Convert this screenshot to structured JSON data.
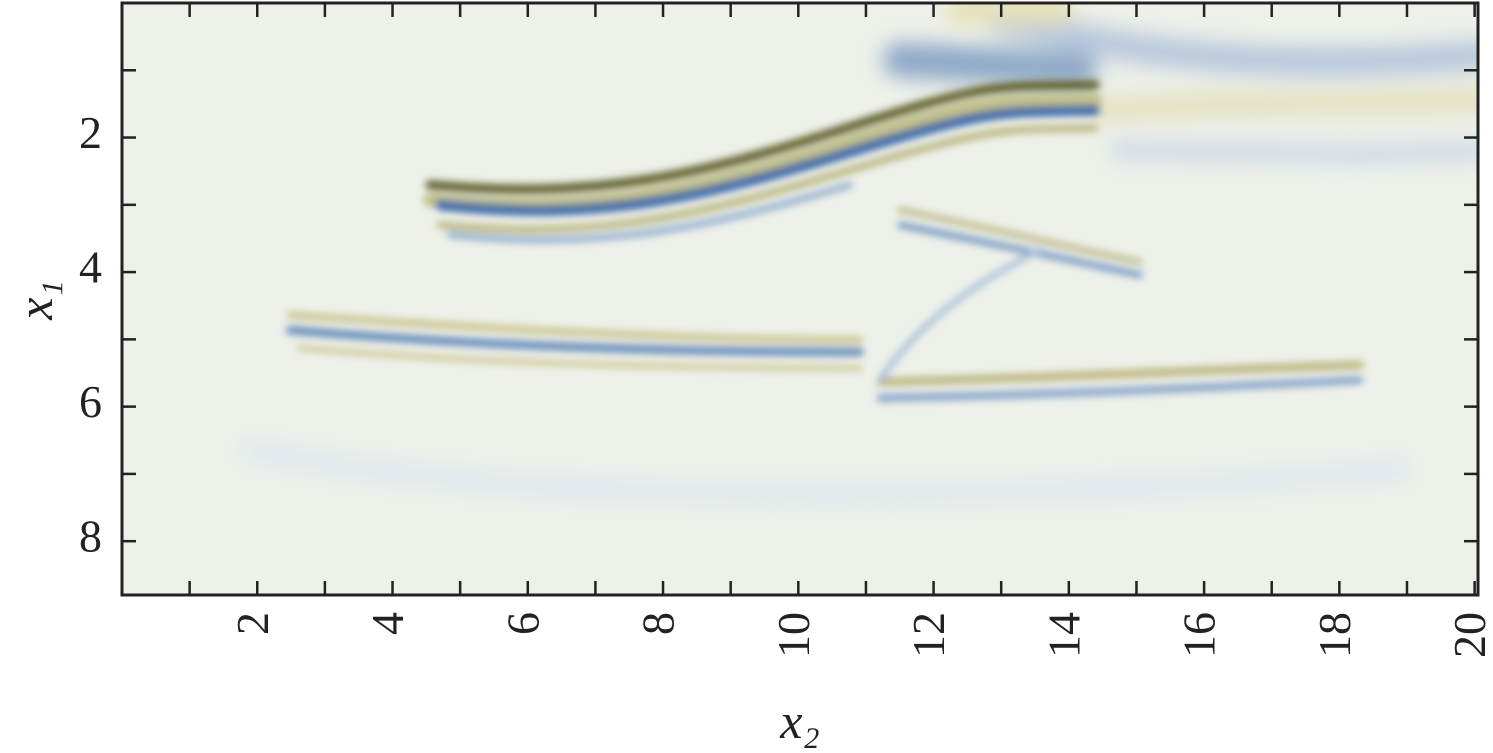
{
  "chart_data": {
    "type": "image",
    "xlabel": "x₂",
    "ylabel": "x₁",
    "xlim": [
      0,
      20.05
    ],
    "ylim": [
      0,
      8.8
    ],
    "yinverted": true,
    "xticks": [
      2,
      4,
      6,
      8,
      10,
      12,
      14,
      16,
      18,
      20
    ],
    "xminor": [
      1,
      3,
      5,
      7,
      9,
      11,
      13,
      15,
      17,
      19
    ],
    "yticks": [
      2,
      4,
      6,
      8
    ],
    "yminor": [
      1,
      3,
      5,
      7
    ]
  }
}
